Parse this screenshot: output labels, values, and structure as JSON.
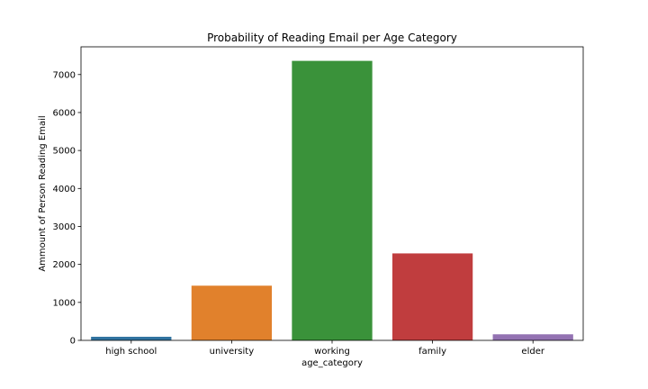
{
  "chart_data": {
    "type": "bar",
    "title": "Probability of Reading Email per Age Category",
    "xlabel": "age_category",
    "ylabel": "Ammount of Person Reading Email",
    "categories": [
      "high school",
      "university",
      "working",
      "family",
      "elder"
    ],
    "values": [
      95,
      1440,
      7360,
      2290,
      160
    ],
    "colors": [
      "#3274a1",
      "#e1812c",
      "#3a923a",
      "#c03d3e",
      "#9372b2"
    ],
    "ylim": [
      0,
      7730
    ],
    "yticks": [
      0,
      1000,
      2000,
      3000,
      4000,
      5000,
      6000,
      7000
    ],
    "grid": false,
    "legend": "none"
  }
}
